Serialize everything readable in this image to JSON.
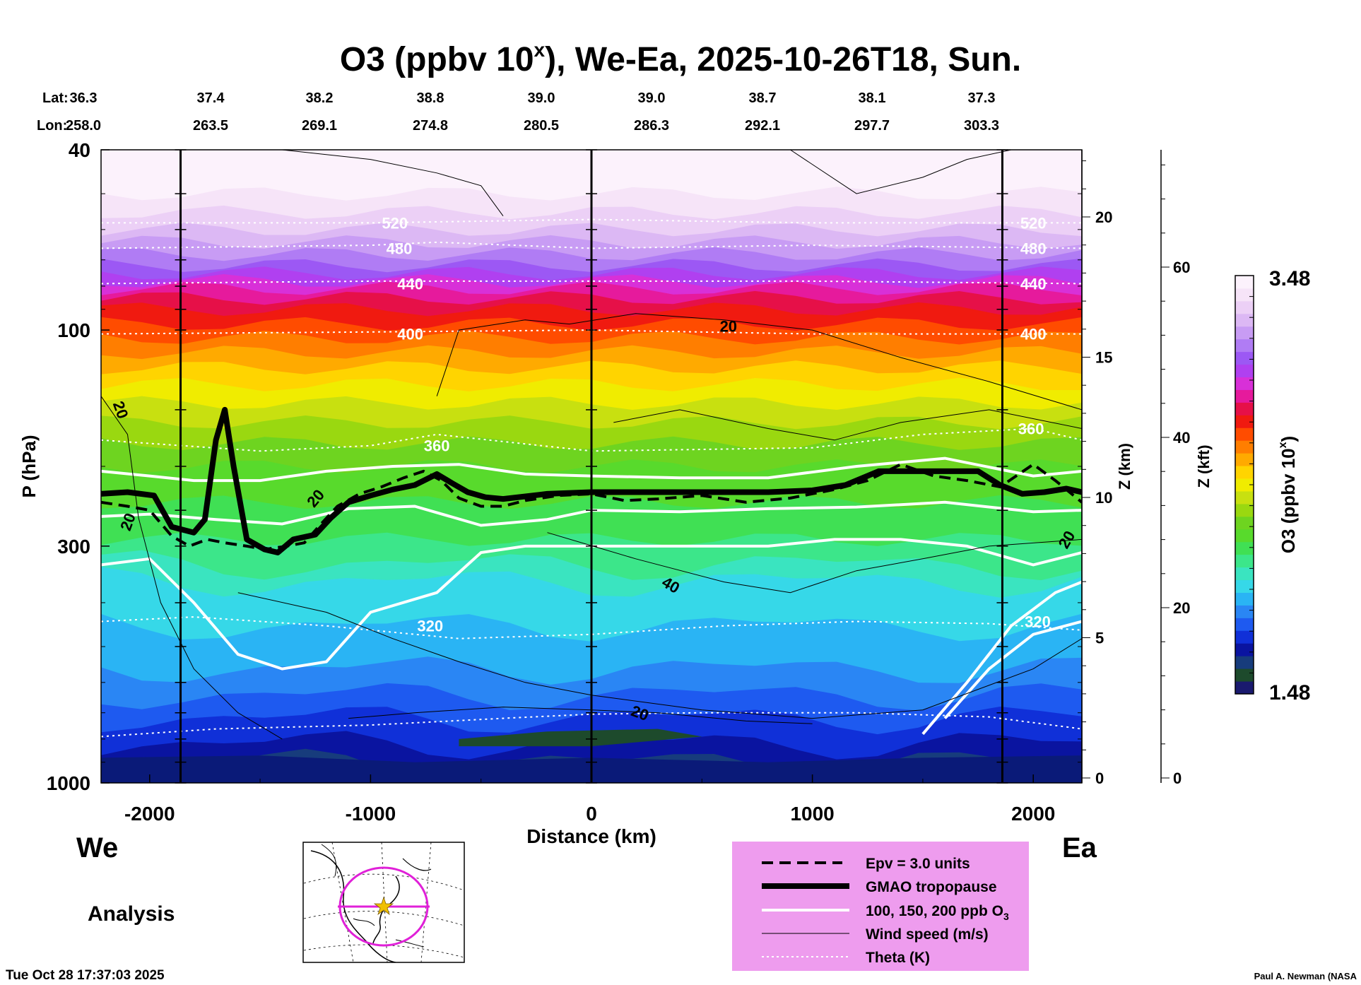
{
  "chart_data": {
    "type": "heatmap",
    "title": "O3 (ppbv 10^x), We-Ea, 2025-10-26T18, Sun.",
    "title_main": "O3 (ppbv 10",
    "title_sup": "x",
    "title_rest": "), We-Ea, 2025-10-26T18, Sun.",
    "lat_label": "Lat:",
    "lon_label": "Lon:",
    "lat_values": [
      "36.3",
      "37.4",
      "38.2",
      "38.8",
      "39.0",
      "39.0",
      "38.7",
      "38.1",
      "37.3"
    ],
    "lon_values": [
      "258.0",
      "263.5",
      "269.1",
      "274.8",
      "280.5",
      "286.3",
      "292.1",
      "297.7",
      "303.3"
    ],
    "xlabel": "Distance (km)",
    "ylabel": "P (hPa)",
    "xlim": [
      -2220,
      2220
    ],
    "x_ticks": [
      -2000,
      -1000,
      0,
      1000,
      2000
    ],
    "x_tick_labels": [
      "-2000",
      "-1000",
      "0",
      "1000",
      "2000"
    ],
    "y_scale": "log",
    "ylim": [
      1000,
      40
    ],
    "y_ticks": [
      40,
      100,
      300,
      1000
    ],
    "y_tick_labels": [
      "40",
      "100",
      "300",
      "1000"
    ],
    "z_km_label": "Z (km)",
    "z_km_ticks": [
      "0",
      "5",
      "10",
      "15",
      "20"
    ],
    "z_km_values": [
      0,
      5,
      10,
      15,
      20
    ],
    "z_kft_label": "Z (kft)",
    "z_kft_ticks": [
      "0",
      "20",
      "40",
      "60"
    ],
    "z_kft_values": [
      0,
      20,
      40,
      60
    ],
    "colorbar": {
      "label": "O3 (ppbv 10^x)",
      "label_main": "O3 (ppbv 10",
      "label_sup": "x",
      "label_rest": ")",
      "max_label": "3.48",
      "min_label": "1.48",
      "range": [
        1.48,
        3.48
      ],
      "colors": [
        "#1a1a6e",
        "#1d4a2c",
        "#173c7c",
        "#0a14a0",
        "#1030d8",
        "#1e5af0",
        "#2a86f4",
        "#2ab4f4",
        "#36d8e8",
        "#3ae4c0",
        "#3ce68a",
        "#40e054",
        "#58da2c",
        "#6ed420",
        "#9ad810",
        "#c8e010",
        "#f0ec00",
        "#ffd400",
        "#ffaa00",
        "#ff7e00",
        "#ff4c00",
        "#f01a10",
        "#e61048",
        "#e61a9c",
        "#d830d8",
        "#b040f0",
        "#9c58f4",
        "#b07cf4",
        "#c89cf4",
        "#dcb8f4",
        "#ecd0f6",
        "#f6e4f8",
        "#fcf2fc"
      ]
    },
    "tropopause": [
      [
        -2220,
        230
      ],
      [
        -2100,
        228
      ],
      [
        -1980,
        232
      ],
      [
        -1900,
        272
      ],
      [
        -1800,
        280
      ],
      [
        -1750,
        262
      ],
      [
        -1700,
        175
      ],
      [
        -1660,
        150
      ],
      [
        -1620,
        200
      ],
      [
        -1560,
        290
      ],
      [
        -1480,
        305
      ],
      [
        -1420,
        310
      ],
      [
        -1350,
        290
      ],
      [
        -1250,
        283
      ],
      [
        -1180,
        260
      ],
      [
        -1100,
        240
      ],
      [
        -1000,
        232
      ],
      [
        -900,
        225
      ],
      [
        -800,
        220
      ],
      [
        -700,
        208
      ],
      [
        -630,
        218
      ],
      [
        -560,
        228
      ],
      [
        -480,
        234
      ],
      [
        -400,
        236
      ],
      [
        -200,
        230
      ],
      [
        0,
        228
      ],
      [
        400,
        228
      ],
      [
        800,
        228
      ],
      [
        1000,
        226
      ],
      [
        1150,
        220
      ],
      [
        1300,
        205
      ],
      [
        1500,
        205
      ],
      [
        1750,
        205
      ],
      [
        1850,
        220
      ],
      [
        1950,
        230
      ],
      [
        2050,
        228
      ],
      [
        2150,
        224
      ],
      [
        2220,
        228
      ]
    ],
    "epv_3_units": [
      [
        -2220,
        240
      ],
      [
        -2100,
        245
      ],
      [
        -2000,
        250
      ],
      [
        -1900,
        285
      ],
      [
        -1820,
        300
      ],
      [
        -1740,
        290
      ],
      [
        -1660,
        295
      ],
      [
        -1560,
        300
      ],
      [
        -1480,
        305
      ],
      [
        -1380,
        300
      ],
      [
        -1300,
        295
      ],
      [
        -1230,
        270
      ],
      [
        -1150,
        245
      ],
      [
        -1050,
        230
      ],
      [
        -950,
        222
      ],
      [
        -850,
        212
      ],
      [
        -760,
        205
      ],
      [
        -680,
        215
      ],
      [
        -600,
        235
      ],
      [
        -500,
        245
      ],
      [
        -400,
        245
      ],
      [
        -300,
        238
      ],
      [
        -150,
        232
      ],
      [
        0,
        230
      ],
      [
        150,
        238
      ],
      [
        300,
        236
      ],
      [
        500,
        232
      ],
      [
        700,
        240
      ],
      [
        900,
        235
      ],
      [
        1100,
        225
      ],
      [
        1250,
        215
      ],
      [
        1400,
        198
      ],
      [
        1550,
        210
      ],
      [
        1700,
        215
      ],
      [
        1850,
        222
      ],
      [
        2000,
        198
      ],
      [
        2100,
        215
      ],
      [
        2220,
        240
      ]
    ],
    "theta_levels": [
      {
        "label": "520",
        "points": [
          [
            -2220,
            58
          ],
          [
            -1000,
            58
          ],
          [
            0,
            57
          ],
          [
            1000,
            58
          ],
          [
            2220,
            58
          ]
        ]
      },
      {
        "label": "480",
        "points": [
          [
            -2220,
            66
          ],
          [
            -1000,
            65
          ],
          [
            -700,
            64
          ],
          [
            0,
            66
          ],
          [
            1000,
            65
          ],
          [
            2220,
            66
          ]
        ]
      },
      {
        "label": "440",
        "points": [
          [
            -2220,
            79
          ],
          [
            -1000,
            78
          ],
          [
            0,
            78
          ],
          [
            1000,
            78
          ],
          [
            2220,
            79
          ]
        ]
      },
      {
        "label": "400",
        "points": [
          [
            -2220,
            102
          ],
          [
            -1000,
            101
          ],
          [
            0,
            100
          ],
          [
            1000,
            102
          ],
          [
            2220,
            102
          ]
        ]
      },
      {
        "label": "360",
        "points": [
          [
            -2220,
            175
          ],
          [
            -1500,
            185
          ],
          [
            -1000,
            180
          ],
          [
            -700,
            170
          ],
          [
            0,
            185
          ],
          [
            1000,
            182
          ],
          [
            1500,
            170
          ],
          [
            2000,
            165
          ],
          [
            2220,
            175
          ]
        ]
      },
      {
        "label": "320",
        "points": [
          [
            -2220,
            440
          ],
          [
            -1800,
            430
          ],
          [
            -1200,
            450
          ],
          [
            -600,
            480
          ],
          [
            0,
            470
          ],
          [
            600,
            450
          ],
          [
            1200,
            440
          ],
          [
            1800,
            445
          ],
          [
            2220,
            460
          ]
        ]
      },
      {
        "label": "",
        "points": [
          [
            -2220,
            790
          ],
          [
            -1700,
            760
          ],
          [
            -1000,
            745
          ],
          [
            -400,
            720
          ],
          [
            0,
            705
          ],
          [
            500,
            700
          ],
          [
            1200,
            700
          ],
          [
            1800,
            715
          ],
          [
            2220,
            760
          ]
        ]
      }
    ],
    "wind_labels": [
      "20",
      "20",
      "20",
      "20",
      "40",
      "20",
      "20"
    ],
    "theta_labels": [
      "520",
      "480",
      "440",
      "400",
      "360",
      "320",
      "520",
      "480",
      "440",
      "400",
      "360",
      "320"
    ],
    "legend": [
      {
        "label": "Epv = 3.0 units",
        "style": "dashed"
      },
      {
        "label": "GMAO tropopause",
        "style": "thick"
      },
      {
        "label": "100, 150, 200 ppb O3",
        "label_main": "100, 150, 200 ppb O",
        "label_sub": "3",
        "style": "white"
      },
      {
        "label": "Wind speed (m/s)",
        "style": "thin"
      },
      {
        "label": "Theta (K)",
        "style": "dotted"
      }
    ],
    "legend_bg": "#ee9cee",
    "west_label": "We",
    "east_label": "Ea",
    "analysis_label": "Analysis",
    "timestamp": "Tue Oct 28 17:37:03 2025",
    "credit": "Paul A. Newman (NASA"
  }
}
